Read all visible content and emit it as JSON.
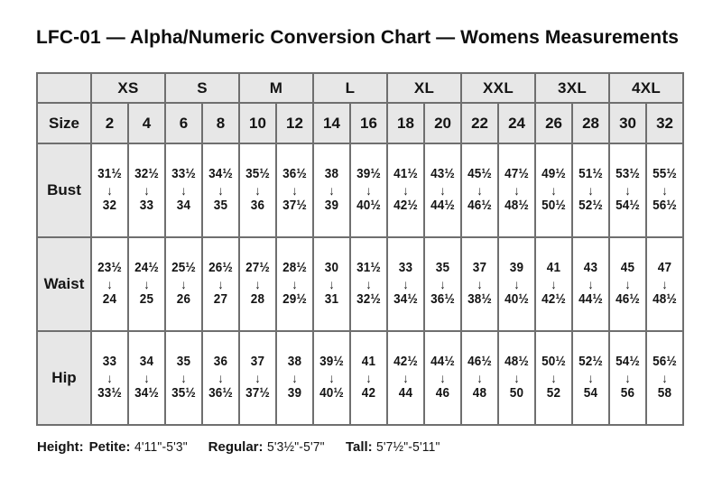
{
  "title": "LFC-01 — Alpha/Numeric Conversion Chart — Womens Measurements",
  "chart_data": {
    "type": "table",
    "title": "LFC-01 — Alpha/Numeric Conversion Chart — Womens Measurements",
    "column_groups": [
      "XS",
      "S",
      "M",
      "L",
      "XL",
      "XXL",
      "3XL",
      "4XL"
    ],
    "columns_per_group": 2,
    "size_label": "Size",
    "sizes": [
      "2",
      "4",
      "6",
      "8",
      "10",
      "12",
      "14",
      "16",
      "18",
      "20",
      "22",
      "24",
      "26",
      "28",
      "30",
      "32"
    ],
    "arrow": "↓",
    "rows": [
      {
        "label": "Bust",
        "cells": [
          {
            "from": "31½",
            "to": "32"
          },
          {
            "from": "32½",
            "to": "33"
          },
          {
            "from": "33½",
            "to": "34"
          },
          {
            "from": "34½",
            "to": "35"
          },
          {
            "from": "35½",
            "to": "36"
          },
          {
            "from": "36½",
            "to": "37½"
          },
          {
            "from": "38",
            "to": "39"
          },
          {
            "from": "39½",
            "to": "40½"
          },
          {
            "from": "41½",
            "to": "42½"
          },
          {
            "from": "43½",
            "to": "44½"
          },
          {
            "from": "45½",
            "to": "46½"
          },
          {
            "from": "47½",
            "to": "48½"
          },
          {
            "from": "49½",
            "to": "50½"
          },
          {
            "from": "51½",
            "to": "52½"
          },
          {
            "from": "53½",
            "to": "54½"
          },
          {
            "from": "55½",
            "to": "56½"
          }
        ]
      },
      {
        "label": "Waist",
        "cells": [
          {
            "from": "23½",
            "to": "24"
          },
          {
            "from": "24½",
            "to": "25"
          },
          {
            "from": "25½",
            "to": "26"
          },
          {
            "from": "26½",
            "to": "27"
          },
          {
            "from": "27½",
            "to": "28"
          },
          {
            "from": "28½",
            "to": "29½"
          },
          {
            "from": "30",
            "to": "31"
          },
          {
            "from": "31½",
            "to": "32½"
          },
          {
            "from": "33",
            "to": "34½"
          },
          {
            "from": "35",
            "to": "36½"
          },
          {
            "from": "37",
            "to": "38½"
          },
          {
            "from": "39",
            "to": "40½"
          },
          {
            "from": "41",
            "to": "42½"
          },
          {
            "from": "43",
            "to": "44½"
          },
          {
            "from": "45",
            "to": "46½"
          },
          {
            "from": "47",
            "to": "48½"
          }
        ]
      },
      {
        "label": "Hip",
        "cells": [
          {
            "from": "33",
            "to": "33½"
          },
          {
            "from": "34",
            "to": "34½"
          },
          {
            "from": "35",
            "to": "35½"
          },
          {
            "from": "36",
            "to": "36½"
          },
          {
            "from": "37",
            "to": "37½"
          },
          {
            "from": "38",
            "to": "39"
          },
          {
            "from": "39½",
            "to": "40½"
          },
          {
            "from": "41",
            "to": "42"
          },
          {
            "from": "42½",
            "to": "44"
          },
          {
            "from": "44½",
            "to": "46"
          },
          {
            "from": "46½",
            "to": "48"
          },
          {
            "from": "48½",
            "to": "50"
          },
          {
            "from": "50½",
            "to": "52"
          },
          {
            "from": "52½",
            "to": "54"
          },
          {
            "from": "54½",
            "to": "56"
          },
          {
            "from": "56½",
            "to": "58"
          }
        ]
      }
    ]
  },
  "footer": {
    "height_label": "Height:",
    "ranges": [
      {
        "label": "Petite:",
        "value": "4'11\"-5'3\""
      },
      {
        "label": "Regular:",
        "value": "5'3½\"-5'7\""
      },
      {
        "label": "Tall:",
        "value": "5'7½\"-5'11\""
      }
    ]
  },
  "colors": {
    "header_bg": "#e7e7e7",
    "border": "#6f6f6f",
    "text": "#141414",
    "background": "#ffffff"
  }
}
